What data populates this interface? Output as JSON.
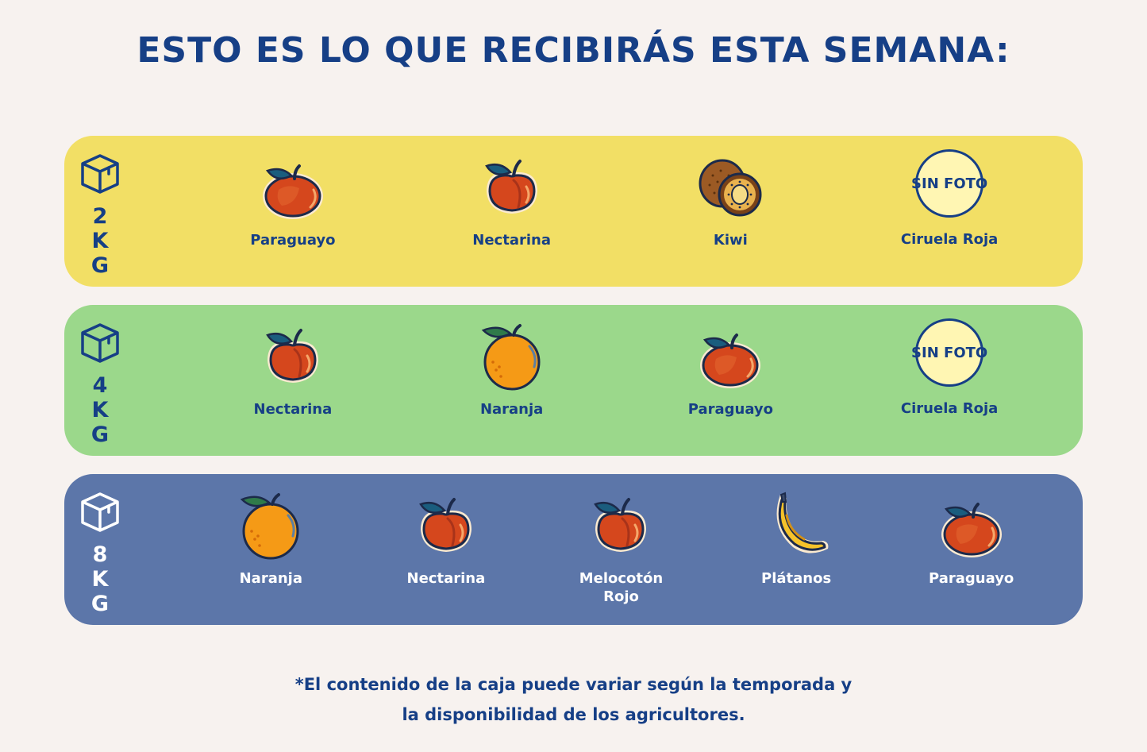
{
  "title": "ESTO ES LO QUE RECIBIRÁS ESTA SEMANA:",
  "colors": {
    "title": "#163f86",
    "background": "#f7f2ef",
    "box_2kg": "#f2df65",
    "box_4kg": "#9bd88b",
    "box_8kg": "#5c76a9"
  },
  "boxes": [
    {
      "weight": "2KG",
      "icon": "box-icon",
      "items": [
        {
          "name": "Paraguayo",
          "icon": "flat-peach-icon"
        },
        {
          "name": "Nectarina",
          "icon": "nectarine-icon"
        },
        {
          "name": "Kiwi",
          "icon": "kiwi-icon"
        },
        {
          "name": "Ciruela Roja",
          "icon": "no-photo-placeholder",
          "placeholder": "SIN FOTO"
        }
      ]
    },
    {
      "weight": "4KG",
      "icon": "box-icon",
      "items": [
        {
          "name": "Nectarina",
          "icon": "nectarine-icon"
        },
        {
          "name": "Naranja",
          "icon": "orange-icon"
        },
        {
          "name": "Paraguayo",
          "icon": "flat-peach-icon"
        },
        {
          "name": "Ciruela Roja",
          "icon": "no-photo-placeholder",
          "placeholder": "SIN FOTO"
        }
      ]
    },
    {
      "weight": "8KG",
      "icon": "box-icon",
      "items": [
        {
          "name": "Naranja",
          "icon": "orange-icon"
        },
        {
          "name": "Nectarina",
          "icon": "nectarine-icon"
        },
        {
          "name": "Melocotón Rojo",
          "icon": "red-peach-icon"
        },
        {
          "name": "Plátanos",
          "icon": "banana-icon"
        },
        {
          "name": "Paraguayo",
          "icon": "flat-peach-icon"
        }
      ]
    }
  ],
  "footer": {
    "line1": "*El contenido de la caja puede variar según la temporada y",
    "line2": "la disponibilidad de los agricultores."
  }
}
